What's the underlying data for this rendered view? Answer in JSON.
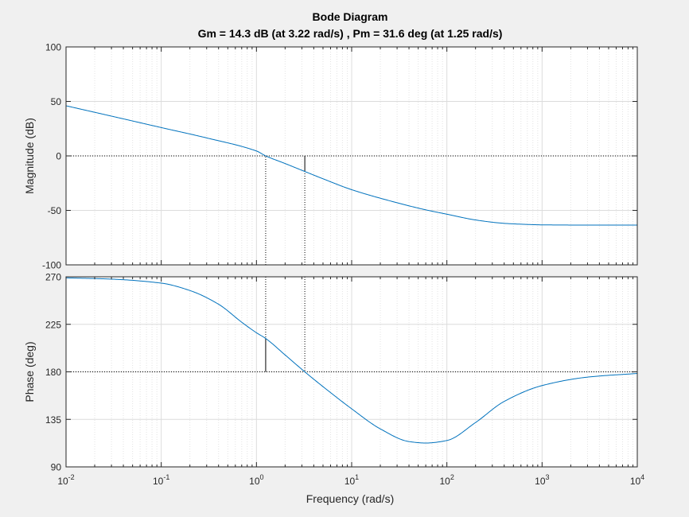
{
  "figure": {
    "title": "Bode Diagram",
    "subtitle": "Gm = 14.3 dB (at 3.22 rad/s) ,  Pm = 31.6 deg (at 1.25 rad/s)",
    "xlabel": "Frequency  (rad/s)",
    "background": "#f0f0f0",
    "axes_bg": "#ffffff",
    "line_color": "#0072bd",
    "axis_color": "#262626"
  },
  "chart_data": [
    {
      "type": "line",
      "panel": "magnitude",
      "ylabel": "Magnitude (dB)",
      "xscale": "log",
      "xlim": [
        0.01,
        10000
      ],
      "ylim": [
        -100,
        100
      ],
      "yticks": [
        -100,
        -50,
        0,
        50,
        100
      ],
      "grid": true,
      "series": [
        {
          "x": [
            0.01,
            0.03,
            0.1,
            0.3,
            1,
            1.25,
            2,
            3.22,
            5,
            10,
            30,
            60,
            100,
            200,
            400,
            700,
            1000,
            3000,
            10000
          ],
          "y": [
            46,
            36.5,
            26,
            16.5,
            4.5,
            0,
            -7,
            -14.3,
            -21,
            -31,
            -43,
            -49.5,
            -53.5,
            -58.8,
            -61.9,
            -62.9,
            -63.3,
            -63.5,
            -63.5
          ]
        }
      ],
      "reference_lines": [
        {
          "axis": "y",
          "value": 0
        }
      ],
      "margin_markers": [
        {
          "x": 1.25,
          "from": -100,
          "to": 0,
          "style": "dotted"
        },
        {
          "x": 3.22,
          "from": -100,
          "to": -14.3,
          "style": "dotted"
        },
        {
          "x": 3.22,
          "from": -14.3,
          "to": 0,
          "style": "solid"
        }
      ]
    },
    {
      "type": "line",
      "panel": "phase",
      "ylabel": "Phase (deg)",
      "xscale": "log",
      "xlim": [
        0.01,
        10000
      ],
      "ylim": [
        90,
        270
      ],
      "yticks": [
        90,
        135,
        180,
        225,
        270
      ],
      "xticks": [
        0.01,
        0.1,
        1,
        10,
        100,
        1000,
        10000
      ],
      "xtick_labels": [
        {
          "base": "10",
          "exp": "-2"
        },
        {
          "base": "10",
          "exp": "-1"
        },
        {
          "base": "10",
          "exp": "0"
        },
        {
          "base": "10",
          "exp": "1"
        },
        {
          "base": "10",
          "exp": "2"
        },
        {
          "base": "10",
          "exp": "3"
        },
        {
          "base": "10",
          "exp": "4"
        }
      ],
      "grid": true,
      "series": [
        {
          "x": [
            0.01,
            0.03,
            0.1,
            0.2,
            0.4,
            0.7,
            1,
            1.25,
            2,
            3.22,
            5,
            10,
            20,
            40,
            60,
            100,
            200,
            400,
            1000,
            3000,
            10000
          ],
          "y": [
            269,
            267.8,
            264,
            257,
            244,
            227,
            217,
            211.6,
            196,
            180,
            166,
            145,
            126,
            114,
            112.6,
            115,
            132,
            152,
            167,
            175,
            178.5
          ]
        }
      ],
      "reference_lines": [
        {
          "axis": "y",
          "value": 180
        }
      ],
      "margin_markers": [
        {
          "x": 1.25,
          "from": 270,
          "to": 211.6,
          "style": "dotted"
        },
        {
          "x": 1.25,
          "from": 211.6,
          "to": 180,
          "style": "solid"
        },
        {
          "x": 3.22,
          "from": 270,
          "to": 180,
          "style": "dotted"
        }
      ]
    }
  ]
}
